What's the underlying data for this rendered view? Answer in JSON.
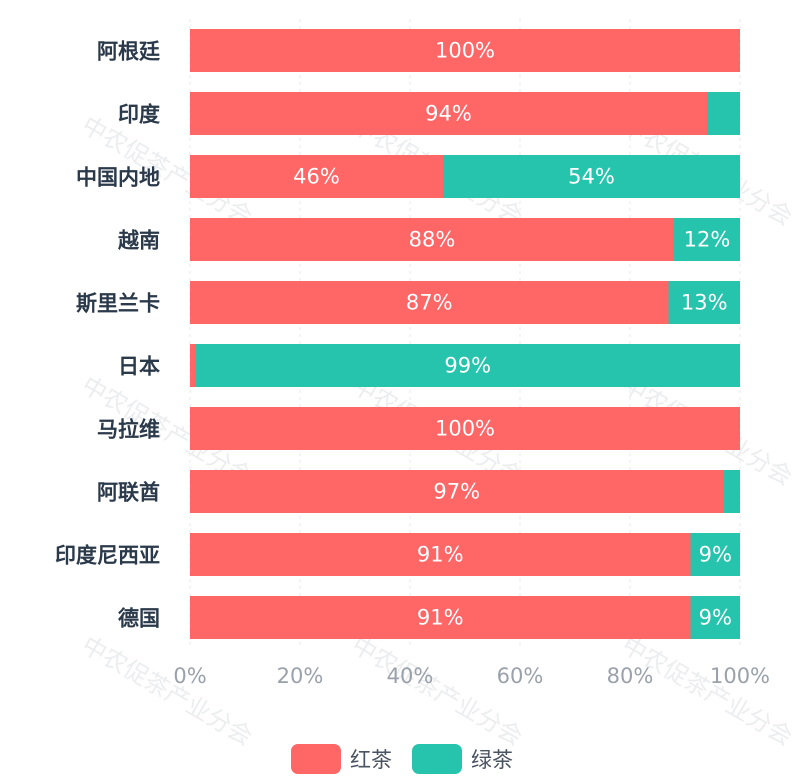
{
  "chart_data": {
    "type": "bar",
    "orientation": "horizontal",
    "stacked": true,
    "categories": [
      "阿根廷",
      "印度",
      "中国内地",
      "越南",
      "斯里兰卡",
      "日本",
      "马拉维",
      "阿联酋",
      "印度尼西亚",
      "德国"
    ],
    "series": [
      {
        "name": "红茶",
        "color": "#ff6666",
        "values": [
          100,
          94,
          46,
          88,
          87,
          1,
          100,
          97,
          91,
          91
        ]
      },
      {
        "name": "绿茶",
        "color": "#26c4ad",
        "values": [
          0,
          6,
          54,
          12,
          13,
          99,
          0,
          3,
          9,
          9
        ]
      }
    ],
    "data_labels": [
      [
        "100%",
        "94%",
        "46%",
        "88%",
        "87%",
        "",
        "100%",
        "97%",
        "91%",
        "91%"
      ],
      [
        "",
        "",
        "54%",
        "12%",
        "13%",
        "99%",
        "",
        "",
        "9%",
        "9%"
      ]
    ],
    "xlim": [
      0,
      100
    ],
    "xticks": [
      "0%",
      "20%",
      "40%",
      "60%",
      "80%",
      "100%"
    ],
    "grid": true,
    "legend_position": "bottom",
    "watermark": "中农促茶产业分会"
  }
}
